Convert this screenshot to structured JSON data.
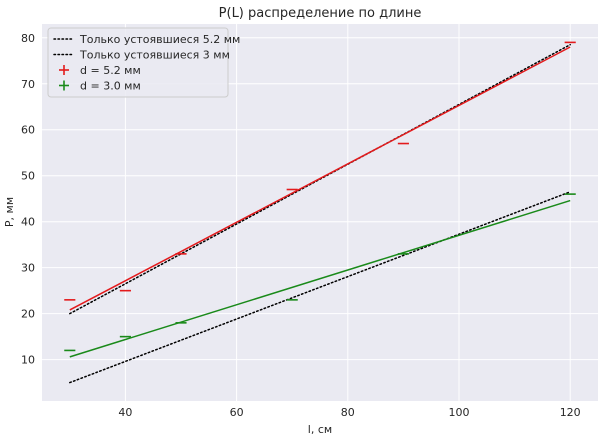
{
  "chart_data": {
    "type": "scatter",
    "title": "P(L) распределение по длине",
    "xlabel": "l, см",
    "ylabel": "P, мм",
    "xlim": [
      25,
      125
    ],
    "ylim": [
      1,
      83
    ],
    "xticks": [
      40,
      60,
      80,
      100,
      120
    ],
    "yticks": [
      10,
      20,
      30,
      40,
      50,
      60,
      70,
      80
    ],
    "grid": true,
    "background": "#eaeaf2",
    "legend_position": "top-left",
    "series": [
      {
        "name": "Только устоявшиеся 5.2 мм",
        "kind": "line",
        "style": "dotted",
        "color": "#000000",
        "x": [
          30,
          120
        ],
        "y": [
          20,
          78.5
        ]
      },
      {
        "name": "Только устоявшиеся 3 мм",
        "kind": "line",
        "style": "dotted",
        "color": "#000000",
        "x": [
          30,
          120
        ],
        "y": [
          5,
          46.5
        ]
      },
      {
        "name": "d = 5.2 мм",
        "kind": "errorbar",
        "color": "#e31a1c",
        "x": [
          30,
          40,
          50,
          70,
          90,
          120
        ],
        "y": [
          23,
          25,
          33,
          47,
          57,
          79
        ],
        "x_err": 1
      },
      {
        "name": "d = 3.0 мм",
        "kind": "errorbar",
        "color": "#1a8a1a",
        "x": [
          30,
          40,
          50,
          70,
          90,
          120
        ],
        "y": [
          12,
          15,
          18,
          23,
          33,
          46
        ],
        "x_err": 1
      },
      {
        "kind": "fit",
        "style": "solid",
        "color": "#e31a1c",
        "x": [
          30,
          120
        ],
        "y": [
          20.8,
          78
        ]
      },
      {
        "kind": "fit",
        "style": "solid",
        "color": "#1a8a1a",
        "x": [
          30,
          120
        ],
        "y": [
          10.6,
          44.6
        ]
      }
    ]
  }
}
